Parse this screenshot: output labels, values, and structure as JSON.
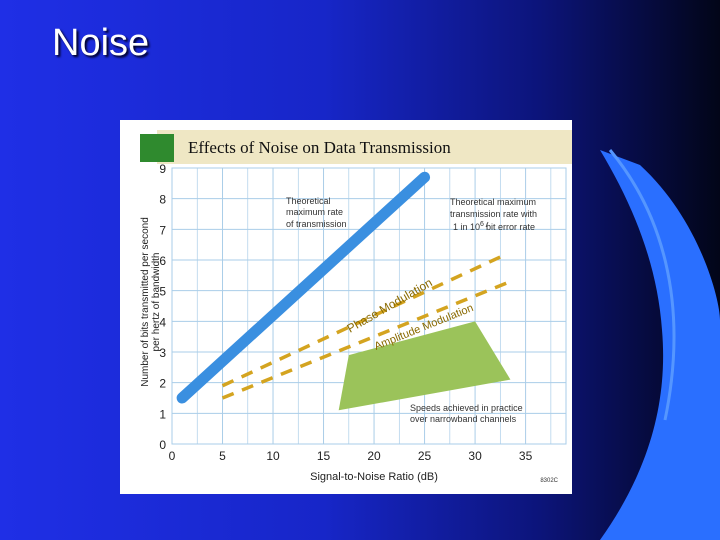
{
  "slide": {
    "title": "Noise"
  },
  "chart_data": {
    "type": "line",
    "title": "Effects of Noise on Data Transmission",
    "xlabel": "Signal-to-Noise Ratio (dB)",
    "ylabel_line1": "Number of bits transmitted per second",
    "ylabel_line2": "per hertz of bandwidth",
    "xlim": [
      0,
      39
    ],
    "ylim": [
      0,
      9
    ],
    "x_ticks": [
      0,
      5,
      10,
      15,
      20,
      25,
      30,
      35
    ],
    "y_ticks": [
      0,
      1,
      2,
      3,
      4,
      5,
      6,
      7,
      8,
      9
    ],
    "grid": true,
    "series": [
      {
        "name": "Theoretical maximum rate of transmission",
        "style": "solid-thick",
        "color": "#3a8fe0",
        "x": [
          1,
          25
        ],
        "y": [
          1.5,
          8.7
        ]
      },
      {
        "name": "Phase Modulation",
        "style": "dashed",
        "color": "#d4a420",
        "x": [
          5,
          32.5
        ],
        "y": [
          1.9,
          6.1
        ]
      },
      {
        "name": "Amplitude Modulation",
        "style": "dashed",
        "color": "#d4a420",
        "x": [
          5,
          33.5
        ],
        "y": [
          1.5,
          5.3
        ]
      }
    ],
    "region": {
      "name": "Speeds achieved in practice over narrowband channels",
      "color": "#9bc35a",
      "x": [
        16.5,
        17.5,
        30,
        33.5
      ],
      "y": [
        1.1,
        2.9,
        4,
        2.1
      ]
    },
    "annotations": {
      "theoretical_max": [
        "Theoretical",
        "maximum rate",
        "of transmission"
      ],
      "error_rate": [
        "Theoretical maximum",
        "transmission rate with",
        "1 in 10",
        "bit error rate"
      ],
      "error_rate_exp": "6",
      "phase": "Phase Modulation",
      "amplitude": "Amplitude Modulation",
      "practice": [
        "Speeds achieved in practice",
        "over narrowband channels"
      ],
      "credit": "8302C"
    },
    "colors": {
      "header_bg": "#efe7c4",
      "header_swatch": "#2f8a2e",
      "grid": "#aacde8"
    }
  }
}
